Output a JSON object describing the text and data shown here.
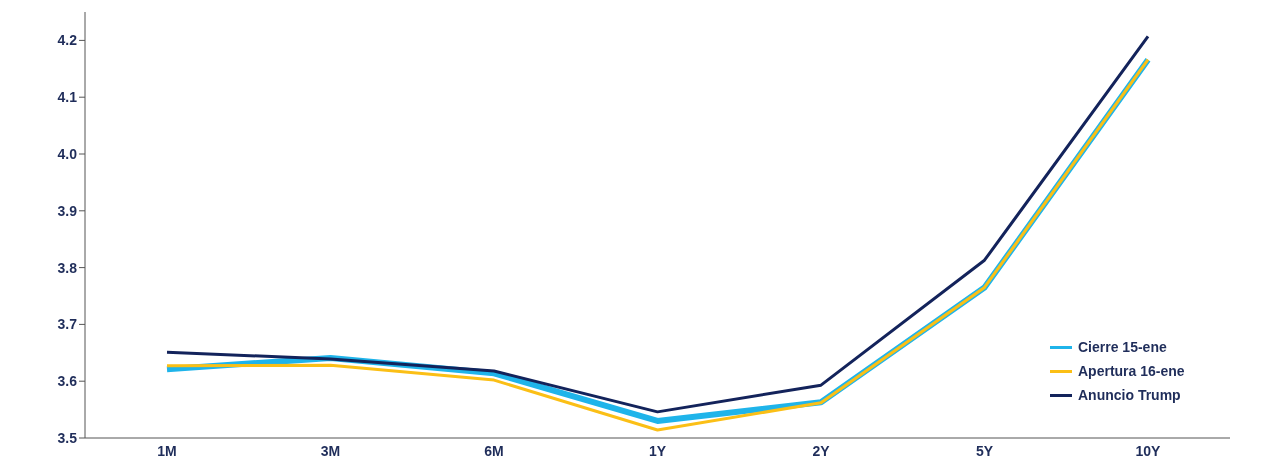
{
  "chart_data": {
    "type": "line",
    "categories": [
      "1M",
      "3M",
      "6M",
      "1Y",
      "2Y",
      "5Y",
      "10Y"
    ],
    "series": [
      {
        "name": "Cierre 15-ene",
        "color": "#1fb4ea",
        "values": [
          3.621,
          3.641,
          3.614,
          3.53,
          3.563,
          3.765,
          4.166
        ]
      },
      {
        "name": "Apertura 16-ene",
        "color": "#fbbf16",
        "values": [
          3.627,
          3.628,
          3.602,
          3.514,
          3.562,
          3.765,
          4.166
        ]
      },
      {
        "name": "Anuncio Trump",
        "color": "#13235b",
        "values": [
          3.651,
          3.639,
          3.618,
          3.546,
          3.593,
          3.813,
          4.207
        ]
      }
    ],
    "ylim": [
      3.5,
      4.25
    ],
    "yticks": [
      {
        "value": 3.5,
        "label": "3.5"
      },
      {
        "value": 3.6,
        "label": "3.6"
      },
      {
        "value": 3.7,
        "label": "3.7"
      },
      {
        "value": 3.8,
        "label": "3.8"
      },
      {
        "value": 3.9,
        "label": "3.9"
      },
      {
        "value": 4.0,
        "label": "4.0"
      },
      {
        "value": 4.1,
        "label": "4.1"
      },
      {
        "value": 4.2,
        "label": "4.2"
      }
    ],
    "grid": false,
    "legend": "bottom right",
    "marker": "none",
    "line_style": "solid"
  }
}
